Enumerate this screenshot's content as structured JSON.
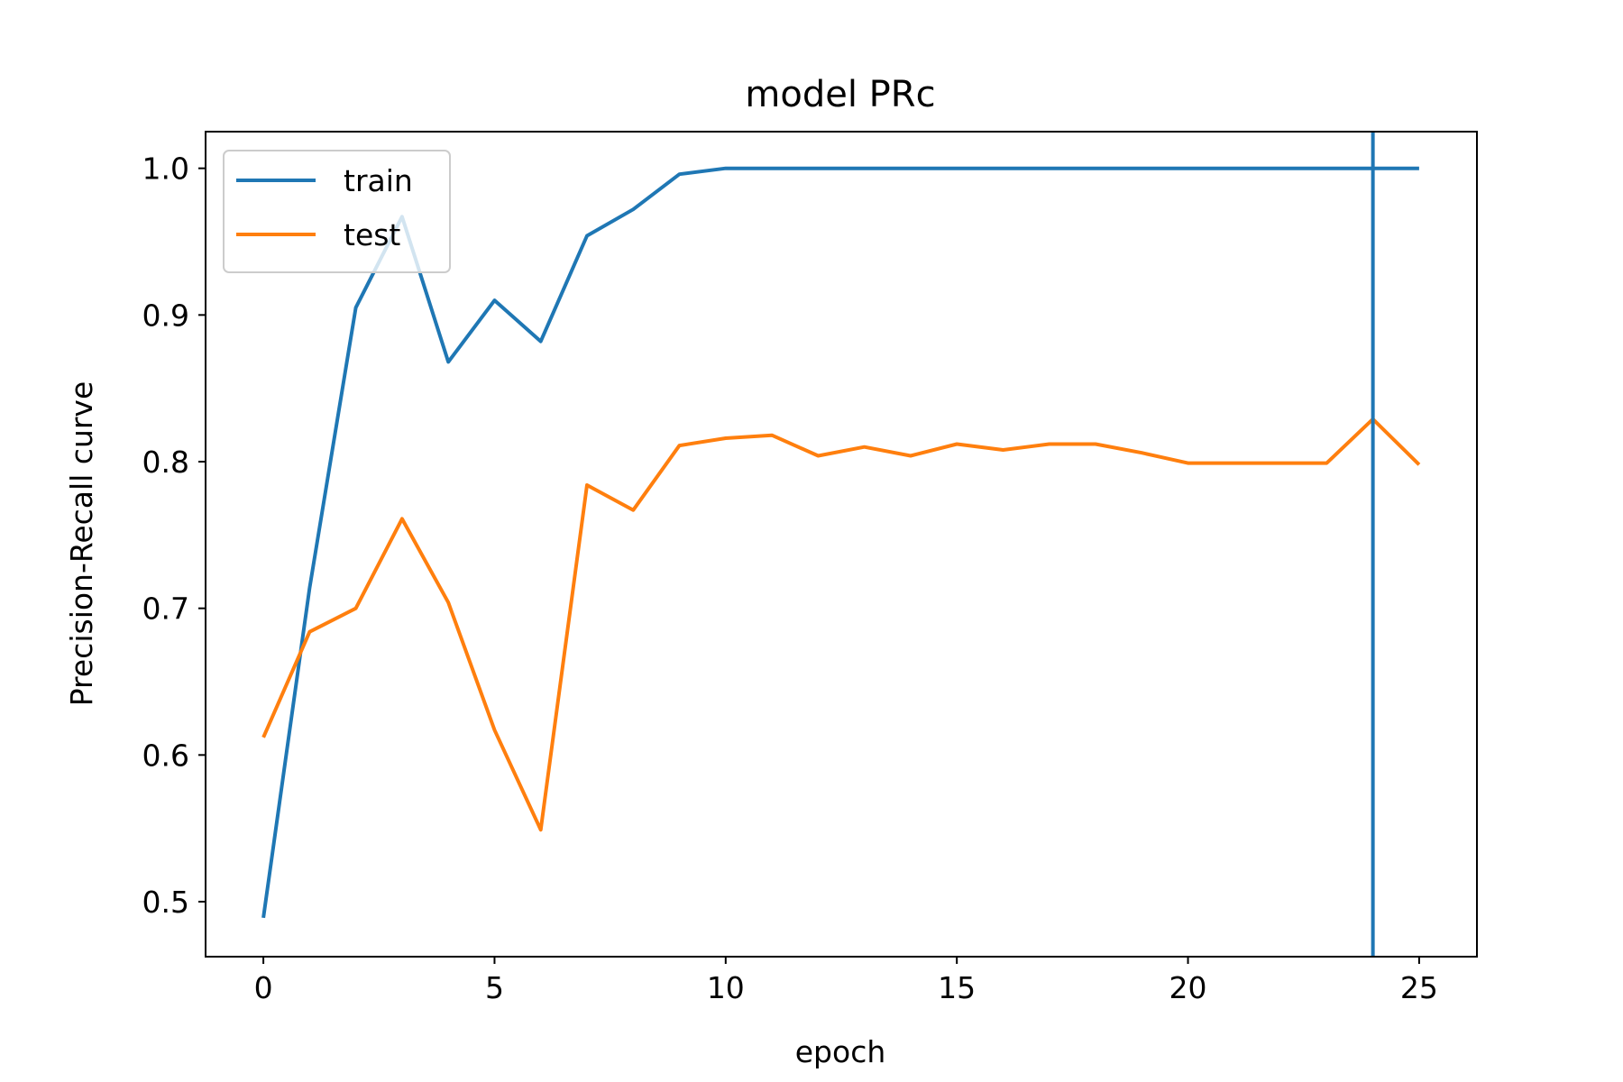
{
  "chart_data": {
    "type": "line",
    "title": "model PRc",
    "xlabel": "epoch",
    "ylabel": "Precision-Recall curve",
    "xlim": [
      -1.25,
      26.25
    ],
    "ylim": [
      0.4625,
      1.025
    ],
    "xticks": [
      0,
      5,
      10,
      15,
      20,
      25
    ],
    "xtick_labels": [
      "0",
      "5",
      "10",
      "15",
      "20",
      "25"
    ],
    "yticks": [
      0.5,
      0.6,
      0.7,
      0.8,
      0.9,
      1.0
    ],
    "ytick_labels": [
      "0.5",
      "0.6",
      "0.7",
      "0.8",
      "0.9",
      "1.0"
    ],
    "grid": false,
    "legend_position": "upper-left",
    "series": [
      {
        "name": "train",
        "color": "#1f77b4",
        "x": [
          0,
          1,
          2,
          3,
          4,
          5,
          6,
          7,
          8,
          9,
          10,
          11,
          12,
          13,
          14,
          15,
          16,
          17,
          18,
          19,
          20,
          21,
          22,
          23,
          24,
          25
        ],
        "y": [
          0.489,
          0.714,
          0.905,
          0.967,
          0.868,
          0.91,
          0.882,
          0.954,
          0.972,
          0.996,
          1.0,
          1.0,
          1.0,
          1.0,
          1.0,
          1.0,
          1.0,
          1.0,
          1.0,
          1.0,
          1.0,
          1.0,
          1.0,
          1.0,
          1.0,
          1.0
        ]
      },
      {
        "name": "test",
        "color": "#ff7f0e",
        "x": [
          0,
          1,
          2,
          3,
          4,
          5,
          6,
          7,
          8,
          9,
          10,
          11,
          12,
          13,
          14,
          15,
          16,
          17,
          18,
          19,
          20,
          21,
          22,
          23,
          24,
          25
        ],
        "y": [
          0.612,
          0.684,
          0.7,
          0.761,
          0.704,
          0.617,
          0.549,
          0.784,
          0.767,
          0.811,
          0.816,
          0.818,
          0.804,
          0.81,
          0.804,
          0.812,
          0.808,
          0.812,
          0.812,
          0.806,
          0.799,
          0.799,
          0.799,
          0.799,
          0.829,
          0.798
        ]
      }
    ],
    "vlines": [
      {
        "x": 24,
        "color": "#1f77b4"
      }
    ]
  }
}
